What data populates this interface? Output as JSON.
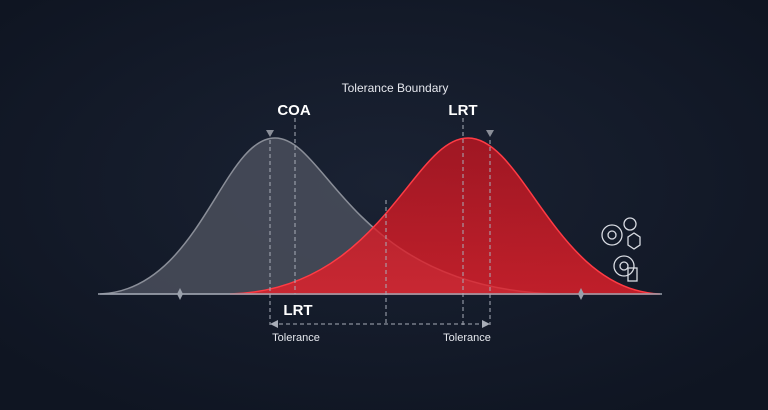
{
  "labels": {
    "title": "Tolerance Boundary",
    "left_peak": "COA",
    "right_peak": "LRT",
    "range_label": "LRT",
    "left_tolerance": "Tolerance",
    "right_tolerance": "Tolerance"
  }
}
